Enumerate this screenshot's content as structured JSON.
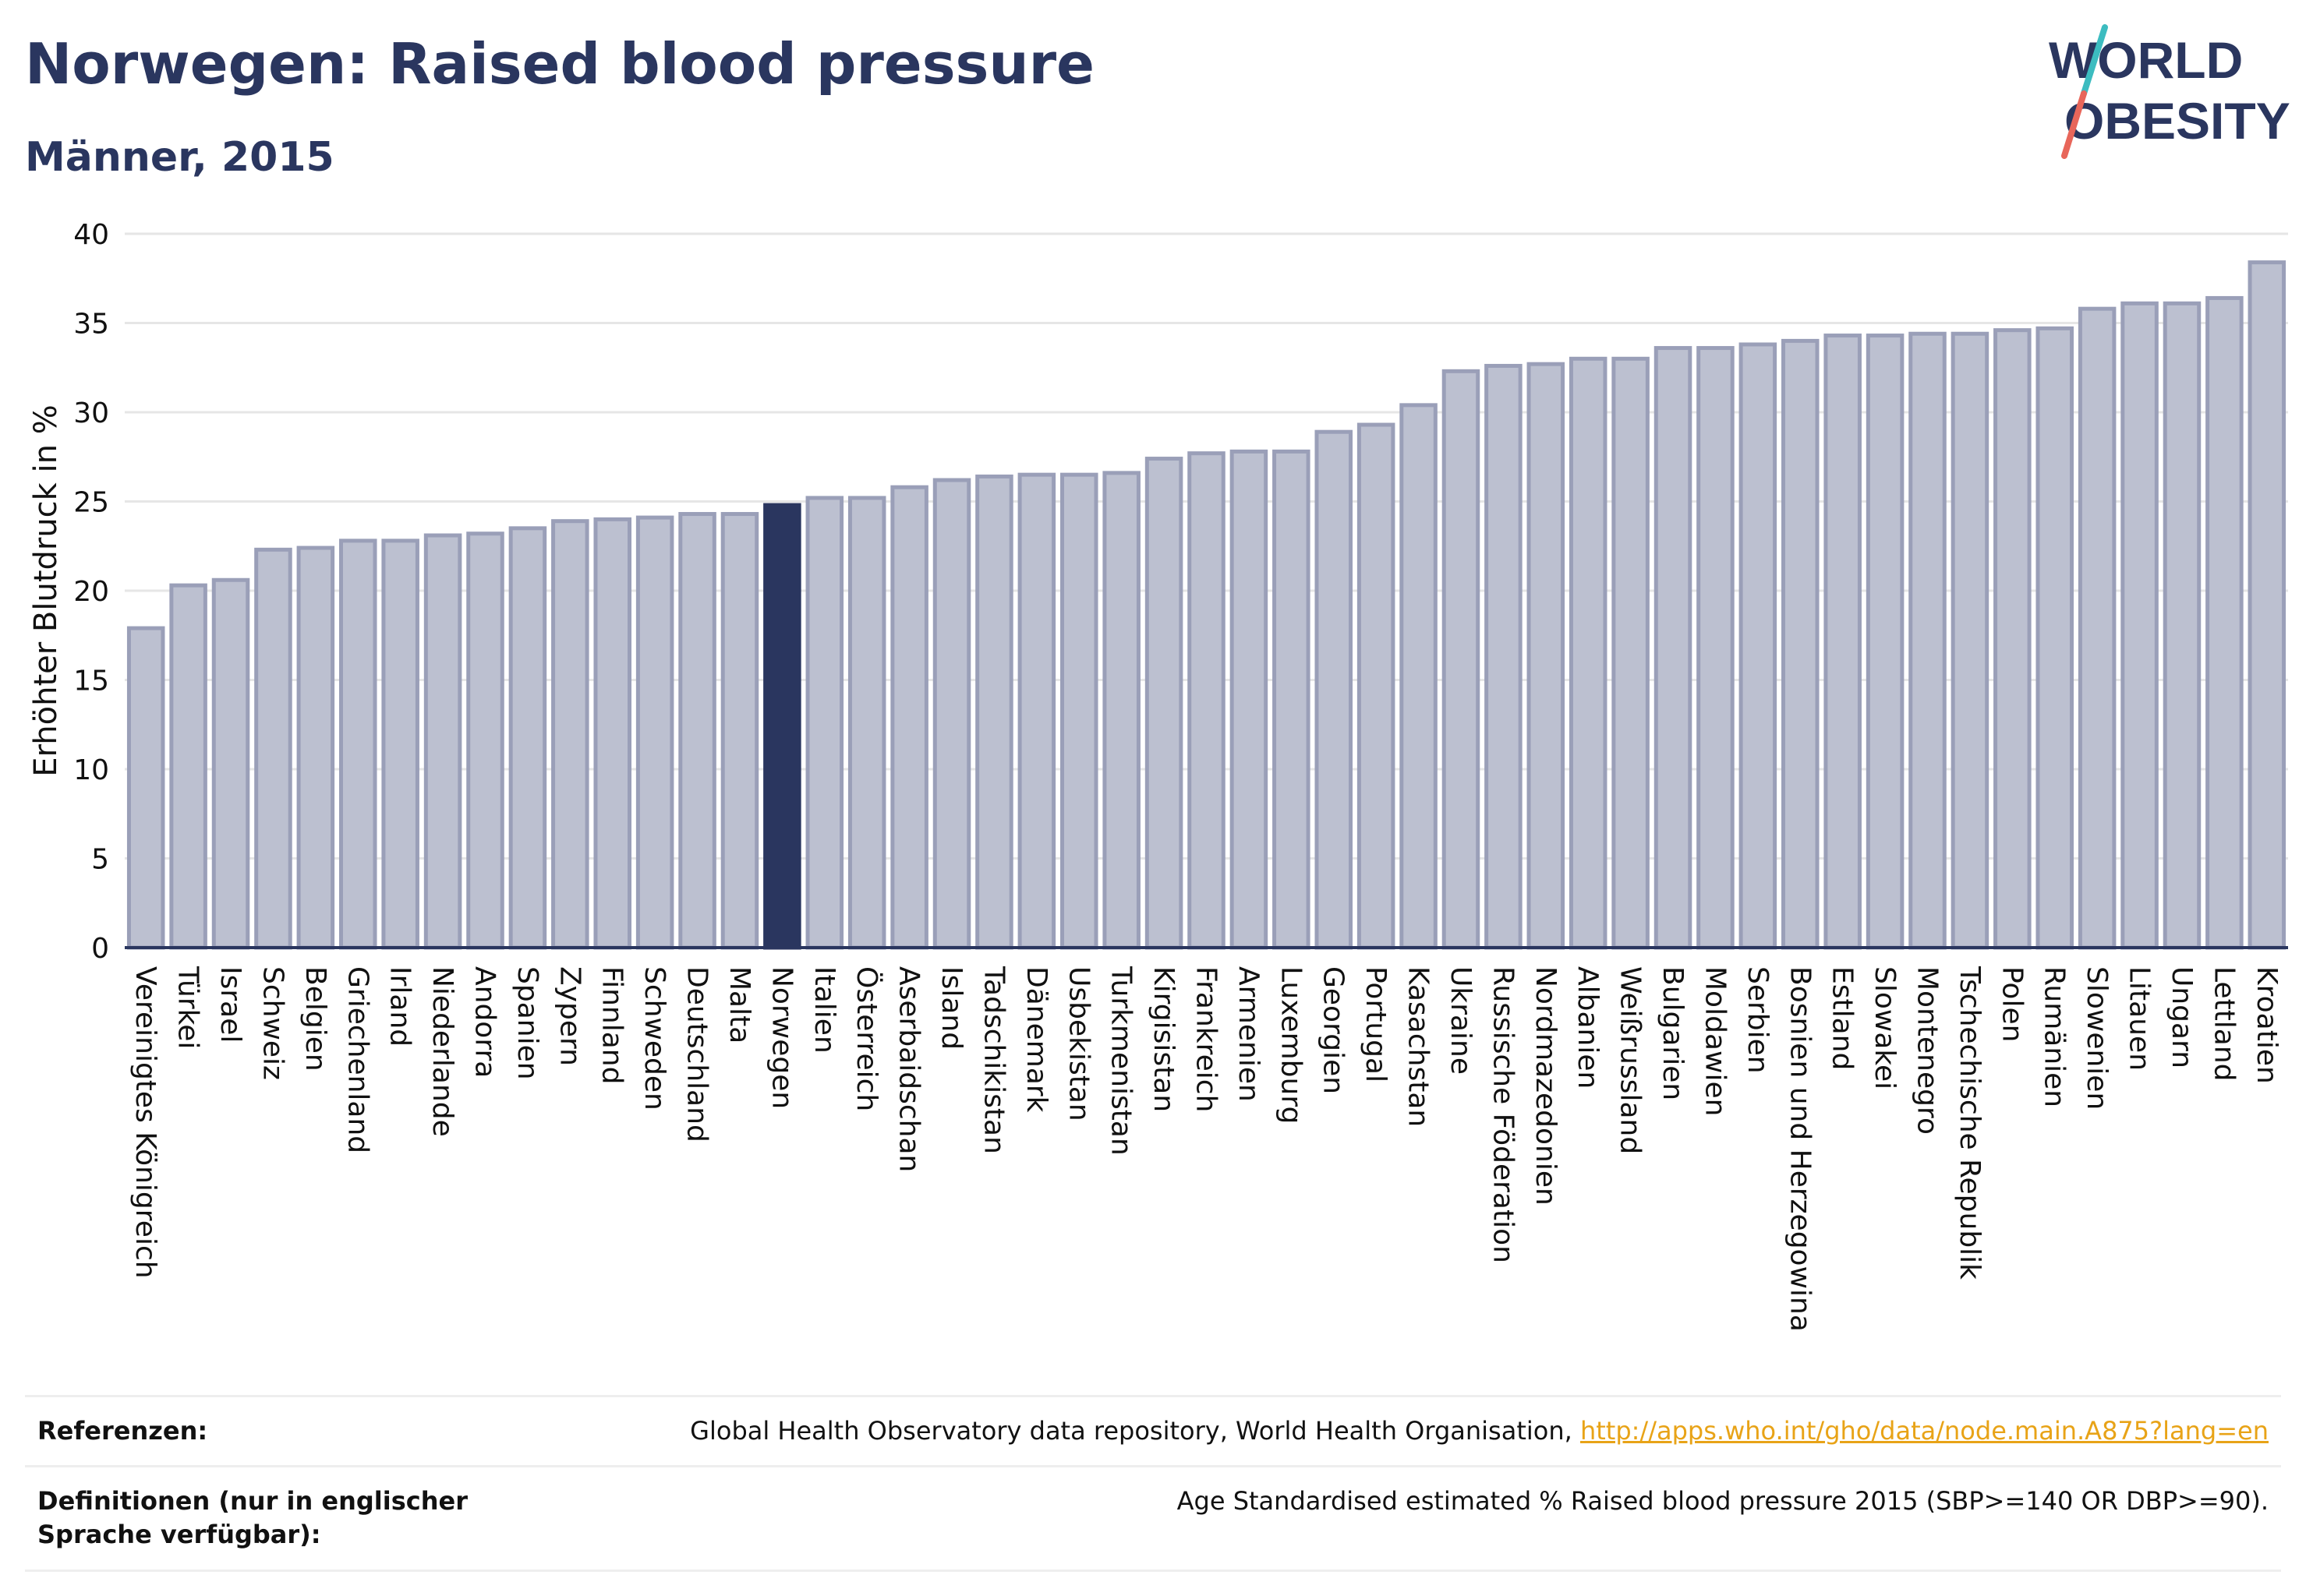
{
  "header": {
    "title": "Norwegen: Raised blood pressure",
    "subtitle": "Männer, 2015"
  },
  "logo": {
    "line1": "WORLD",
    "line2": "OBESITY"
  },
  "colors": {
    "bar": "#bcc0d0",
    "bar_border": "#9a9fb8",
    "highlight": "#2a365f",
    "text": "#2a365f",
    "link": "#e8a317"
  },
  "chart_data": {
    "type": "bar",
    "title": "Norwegen: Raised blood pressure",
    "subtitle": "Männer, 2015",
    "ylabel": "Erhöhter Blutdruck in %",
    "xlabel": "",
    "ylim": [
      0,
      40
    ],
    "yticks": [
      0,
      5,
      10,
      15,
      20,
      25,
      30,
      35,
      40
    ],
    "grid": true,
    "highlight": "Norwegen",
    "categories": [
      "Vereinigtes Königreich",
      "Türkei",
      "Israel",
      "Schweiz",
      "Belgien",
      "Griechenland",
      "Irland",
      "Niederlande",
      "Andorra",
      "Spanien",
      "Zypern",
      "Finnland",
      "Schweden",
      "Deutschland",
      "Malta",
      "Norwegen",
      "Italien",
      "Österreich",
      "Aserbaidschan",
      "Island",
      "Tadschikistan",
      "Dänemark",
      "Usbekistan",
      "Turkmenistan",
      "Kirgisistan",
      "Frankreich",
      "Armenien",
      "Luxemburg",
      "Georgien",
      "Portugal",
      "Kasachstan",
      "Ukraine",
      "Russische Föderation",
      "Nordmazedonien",
      "Albanien",
      "Weißrussland",
      "Bulgarien",
      "Moldawien",
      "Serbien",
      "Bosnien und Herzegowina",
      "Estland",
      "Slowakei",
      "Montenegro",
      "Tschechische Republik",
      "Polen",
      "Rumänien",
      "Slowenien",
      "Litauen",
      "Ungarn",
      "Lettland",
      "Kroatien"
    ],
    "values": [
      17.9,
      20.3,
      20.6,
      22.3,
      22.4,
      22.8,
      22.8,
      23.1,
      23.2,
      23.5,
      23.9,
      24.0,
      24.1,
      24.3,
      24.3,
      24.8,
      25.2,
      25.2,
      25.8,
      26.2,
      26.4,
      26.5,
      26.5,
      26.6,
      27.4,
      27.7,
      27.8,
      27.8,
      28.9,
      29.3,
      30.4,
      32.3,
      32.6,
      32.7,
      33.0,
      33.0,
      33.6,
      33.6,
      33.8,
      34.0,
      34.3,
      34.3,
      34.4,
      34.4,
      34.6,
      34.7,
      35.8,
      36.1,
      36.1,
      36.4,
      38.4
    ]
  },
  "footer": {
    "references_label": "Referenzen:",
    "references_text": "Global Health Observatory data repository, World Health Organisation, ",
    "references_link": "http://apps.who.int/gho/data/node.main.A875?lang=en",
    "definitions_label": "Definitionen (nur in englischer Sprache verfügbar):",
    "definitions_text": "Age Standardised estimated % Raised blood pressure 2015 (SBP>=140 OR DBP>=90)."
  }
}
